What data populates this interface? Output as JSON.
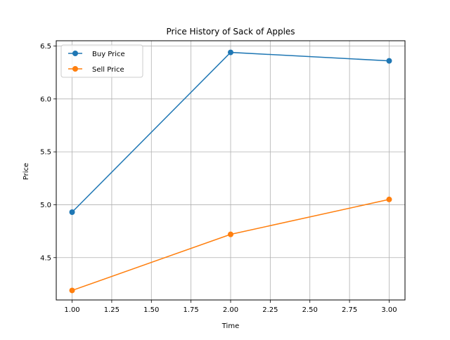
{
  "chart_data": {
    "type": "line",
    "title": "Price History of Sack of Apples",
    "xlabel": "Time",
    "ylabel": "Price",
    "x": [
      1.0,
      2.0,
      3.0
    ],
    "xlim": [
      0.9,
      3.1
    ],
    "ylim": [
      4.1,
      6.55
    ],
    "xticks": [
      1.0,
      1.25,
      1.5,
      1.75,
      2.0,
      2.25,
      2.5,
      2.75,
      3.0
    ],
    "xtick_labels": [
      "1.00",
      "1.25",
      "1.50",
      "1.75",
      "2.00",
      "2.25",
      "2.50",
      "2.75",
      "3.00"
    ],
    "yticks": [
      4.5,
      5.0,
      5.5,
      6.0,
      6.5
    ],
    "ytick_labels": [
      "4.5",
      "5.0",
      "5.5",
      "6.0",
      "6.5"
    ],
    "grid": true,
    "legend": "top-left",
    "series": [
      {
        "name": "Buy Price",
        "color": "#1f77b4",
        "values": [
          4.93,
          6.44,
          6.36
        ]
      },
      {
        "name": "Sell Price",
        "color": "#ff7f0e",
        "values": [
          4.19,
          4.72,
          5.05
        ]
      }
    ]
  }
}
